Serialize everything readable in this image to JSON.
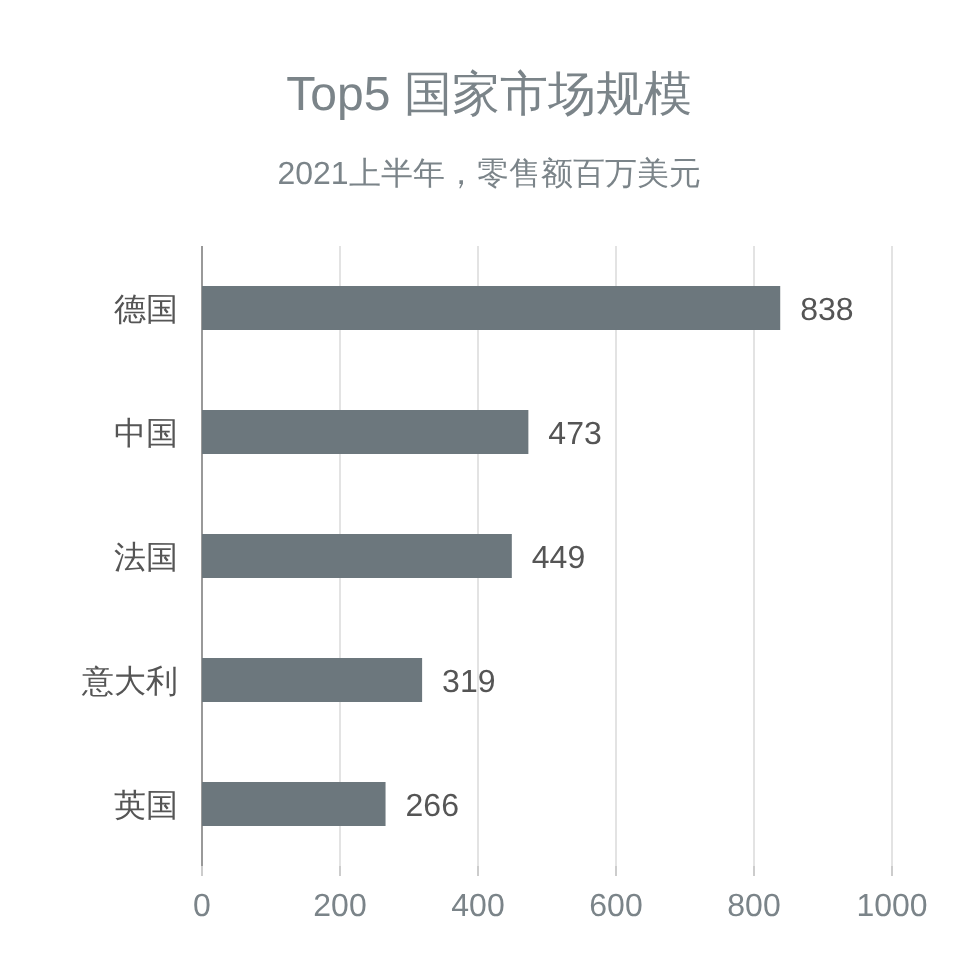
{
  "chart_data": {
    "type": "bar",
    "orientation": "horizontal",
    "title": "Top5 国家市场规模",
    "subtitle": "2021上半年，零售额百万美元",
    "categories": [
      "德国",
      "中国",
      "法国",
      "意大利",
      "英国"
    ],
    "values": [
      838,
      473,
      449,
      319,
      266
    ],
    "color": "#6c777d",
    "xlim": [
      0,
      1000
    ],
    "xticks": [
      0,
      200,
      400,
      600,
      800,
      1000
    ],
    "grid": "x",
    "data_labels": true
  }
}
